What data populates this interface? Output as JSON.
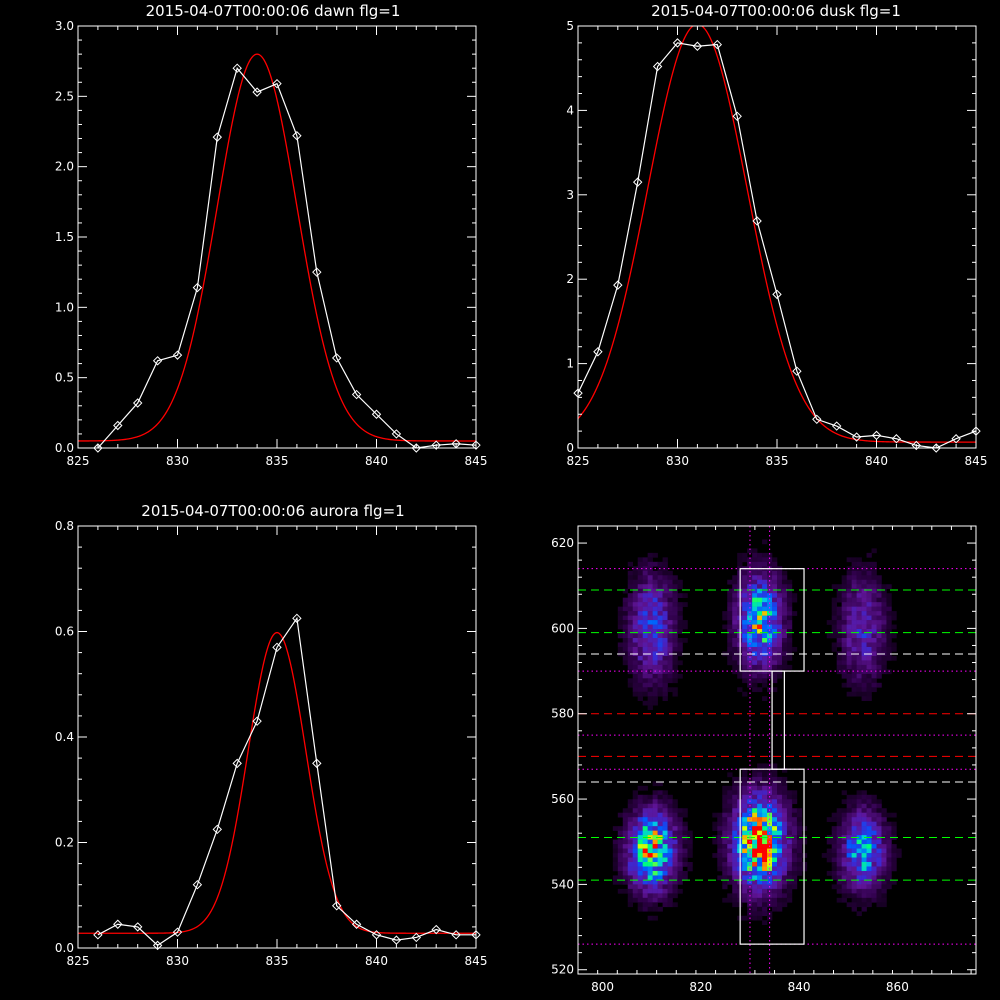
{
  "colors": {
    "background": "#000000",
    "axes": "#ffffff",
    "data_line": "#ffffff",
    "fit_line": "#ff0000",
    "green_dash": "#00ff00",
    "red_dash": "#ff0000",
    "white_dash": "#ffffff",
    "magenta_dot": "#ff00ff"
  },
  "chart_data": [
    {
      "type": "line",
      "title": "2015-04-07T00:00:06 dawn flg=1",
      "xlim": [
        825,
        845
      ],
      "ylim": [
        0,
        3.0
      ],
      "x_ticks": [
        "825",
        "830",
        "835",
        "840",
        "845"
      ],
      "y_ticks": [
        "0.0",
        "0.5",
        "1.0",
        "1.5",
        "2.0",
        "2.5",
        "3.0"
      ],
      "series": [
        {
          "kind": "measured",
          "marker": "diamond",
          "x": [
            826,
            827,
            828,
            829,
            830,
            831,
            832,
            833,
            834,
            835,
            836,
            837,
            838,
            839,
            840,
            841,
            842,
            843,
            844,
            845
          ],
          "y": [
            0.0,
            0.16,
            0.32,
            0.62,
            0.66,
            1.14,
            2.21,
            2.7,
            2.53,
            2.59,
            2.22,
            1.25,
            0.64,
            0.38,
            0.24,
            0.1,
            0.0,
            0.02,
            0.03,
            0.02
          ]
        },
        {
          "kind": "fit",
          "curve": "gaussian",
          "amplitude": 2.75,
          "center": 834.0,
          "sigma": 2.0,
          "offset": 0.05
        }
      ]
    },
    {
      "type": "line",
      "title": "2015-04-07T00:00:06 dusk flg=1",
      "xlim": [
        825,
        845
      ],
      "ylim": [
        0,
        5
      ],
      "x_ticks": [
        "825",
        "830",
        "835",
        "840",
        "845"
      ],
      "y_ticks": [
        "0",
        "1",
        "2",
        "3",
        "4",
        "5"
      ],
      "series": [
        {
          "kind": "measured",
          "marker": "diamond",
          "x": [
            825,
            826,
            827,
            828,
            829,
            830,
            831,
            832,
            833,
            834,
            835,
            836,
            837,
            838,
            839,
            840,
            841,
            842,
            843,
            844,
            845
          ],
          "y": [
            0.65,
            1.14,
            1.93,
            3.15,
            4.52,
            4.8,
            4.76,
            4.78,
            3.93,
            2.69,
            1.82,
            0.91,
            0.34,
            0.26,
            0.13,
            0.15,
            0.11,
            0.03,
            0.0,
            0.11,
            0.2
          ]
        },
        {
          "kind": "fit",
          "curve": "gaussian",
          "amplitude": 4.95,
          "center": 831.0,
          "sigma": 2.5,
          "offset": 0.07
        }
      ]
    },
    {
      "type": "line",
      "title": "2015-04-07T00:00:06 aurora flg=1",
      "xlim": [
        825,
        845
      ],
      "ylim": [
        0,
        0.8
      ],
      "x_ticks": [
        "825",
        "830",
        "835",
        "840",
        "845"
      ],
      "y_ticks": [
        "0.0",
        "0.2",
        "0.4",
        "0.6",
        "0.8"
      ],
      "series": [
        {
          "kind": "measured",
          "marker": "diamond",
          "x": [
            826,
            827,
            828,
            829,
            830,
            831,
            832,
            833,
            834,
            835,
            836,
            837,
            838,
            839,
            840,
            841,
            842,
            843,
            844,
            845
          ],
          "y": [
            0.025,
            0.045,
            0.04,
            0.005,
            0.03,
            0.12,
            0.225,
            0.35,
            0.43,
            0.57,
            0.625,
            0.35,
            0.08,
            0.045,
            0.025,
            0.015,
            0.02,
            0.035,
            0.025,
            0.025
          ]
        },
        {
          "kind": "fit",
          "curve": "gaussian",
          "amplitude": 0.57,
          "center": 835.0,
          "sigma": 1.45,
          "offset": 0.028
        }
      ]
    },
    {
      "type": "heatmap",
      "xlim": [
        795,
        876
      ],
      "ylim": [
        519,
        624
      ],
      "x_ticks": [
        "800",
        "820",
        "840",
        "860"
      ],
      "y_ticks": [
        "520",
        "540",
        "560",
        "580",
        "600",
        "620"
      ],
      "blobs": [
        {
          "x": 810,
          "y": 600,
          "sx": 3.0,
          "sy": 8,
          "amp": 0.45
        },
        {
          "x": 810,
          "y": 548,
          "sx": 3.2,
          "sy": 6,
          "amp": 0.85
        },
        {
          "x": 832,
          "y": 602,
          "sx": 3.0,
          "sy": 7,
          "amp": 0.72
        },
        {
          "x": 832,
          "y": 550,
          "sx": 3.6,
          "sy": 7,
          "amp": 1.0
        },
        {
          "x": 853,
          "y": 600,
          "sx": 3.0,
          "sy": 8,
          "amp": 0.35
        },
        {
          "x": 853,
          "y": 548,
          "sx": 3.0,
          "sy": 6,
          "amp": 0.6
        }
      ],
      "vertical_dotted_lines": [
        830,
        834
      ],
      "horizontal_lines": [
        {
          "style": "dotted",
          "color": "magenta",
          "y": [
            614,
            590,
            575,
            567,
            526
          ]
        },
        {
          "style": "dashed",
          "color": "green",
          "y": [
            609,
            599,
            551,
            541
          ]
        },
        {
          "style": "dashed",
          "color": "white",
          "y": [
            594,
            564
          ]
        },
        {
          "style": "dashed",
          "color": "red",
          "y": [
            580,
            570
          ]
        }
      ],
      "boxes": [
        {
          "x0": 828,
          "x1": 841,
          "y0": 590,
          "y1": 614
        },
        {
          "x0": 834.5,
          "x1": 837,
          "y0": 567,
          "y1": 590
        },
        {
          "x0": 828,
          "x1": 841,
          "y0": 526,
          "y1": 567
        }
      ]
    }
  ]
}
